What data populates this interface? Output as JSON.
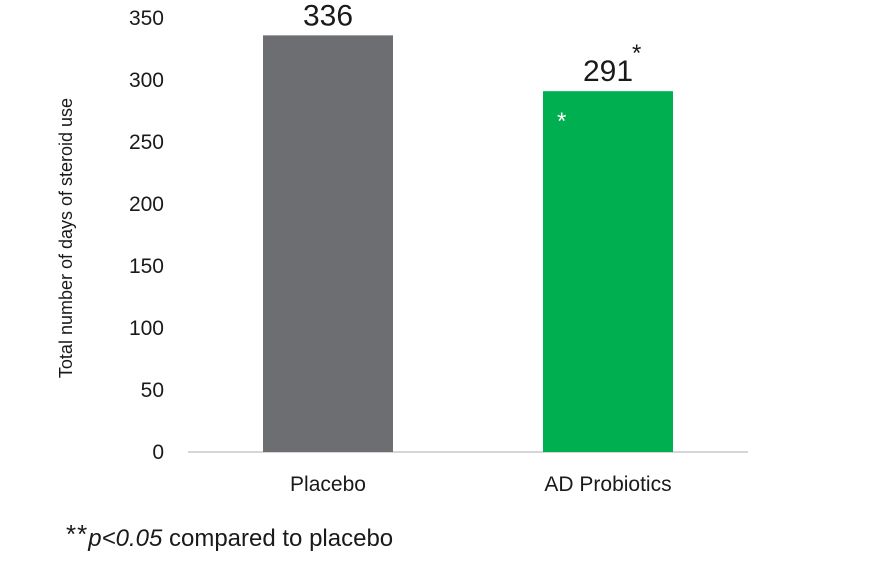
{
  "chart_data": {
    "type": "bar",
    "categories": [
      "Placebo",
      "AD Probiotics"
    ],
    "values": [
      336,
      291
    ],
    "data_labels": [
      "336",
      "291"
    ],
    "label_superscripts": [
      "",
      "*"
    ],
    "bar_inner_marks": [
      "",
      "*"
    ],
    "ylabel": "Total number of days of steroid use",
    "xlabel": "",
    "ylim": [
      0,
      350
    ],
    "yticks": [
      "0",
      "50",
      "100",
      "150",
      "200",
      "250",
      "300",
      "350"
    ],
    "grid": false,
    "colors": [
      "#6d6e71",
      "#00b050"
    ]
  },
  "footnote": {
    "stars": "**",
    "pvalue": "p<0.05",
    "text": " compared to placebo"
  }
}
